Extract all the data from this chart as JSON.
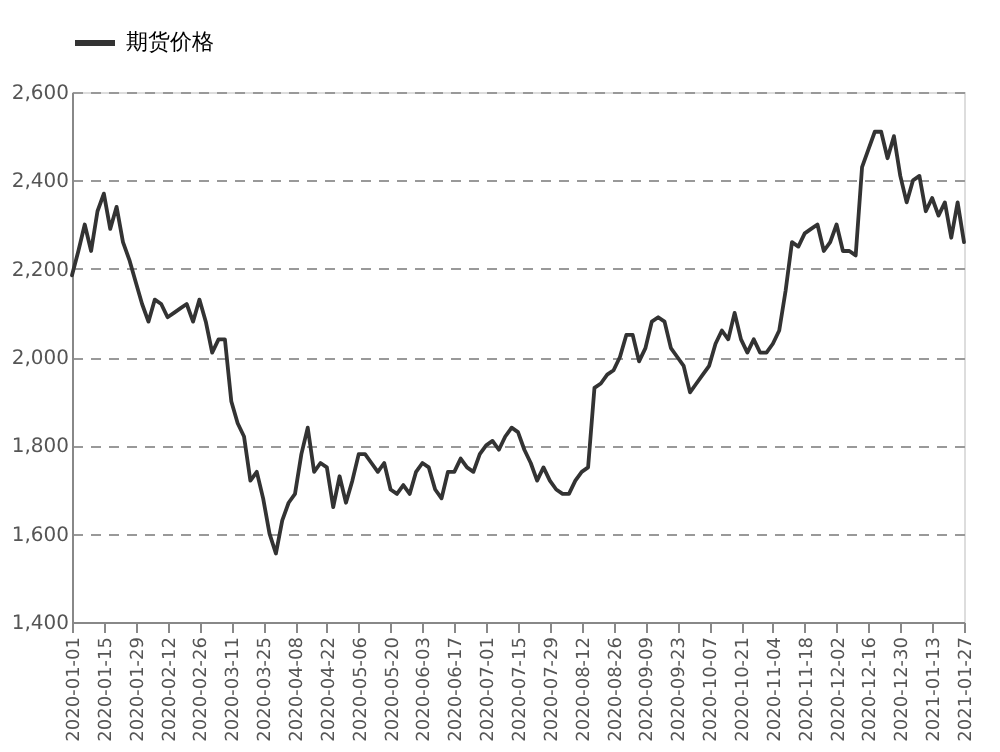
{
  "chart_data": {
    "type": "line",
    "categories": [
      "2020-01-01",
      null,
      null,
      null,
      null,
      "2020-01-15",
      null,
      null,
      null,
      null,
      "2020-01-29",
      null,
      null,
      null,
      null,
      "2020-02-12",
      null,
      null,
      null,
      null,
      "2020-02-26",
      null,
      null,
      null,
      null,
      "2020-03-11",
      null,
      null,
      null,
      null,
      "2020-03-25",
      null,
      null,
      null,
      null,
      "2020-04-08",
      null,
      null,
      null,
      null,
      "2020-04-22",
      null,
      null,
      null,
      null,
      "2020-05-06",
      null,
      null,
      null,
      null,
      "2020-05-20",
      null,
      null,
      null,
      null,
      "2020-06-03",
      null,
      null,
      null,
      null,
      "2020-06-17",
      null,
      null,
      null,
      null,
      "2020-07-01",
      null,
      null,
      null,
      null,
      "2020-07-15",
      null,
      null,
      null,
      null,
      "2020-07-29",
      null,
      null,
      null,
      null,
      "2020-08-12",
      null,
      null,
      null,
      null,
      "2020-08-26",
      null,
      null,
      null,
      null,
      "2020-09-09",
      null,
      null,
      null,
      null,
      "2020-09-23",
      null,
      null,
      null,
      null,
      "2020-10-07",
      null,
      null,
      null,
      null,
      "2020-10-21",
      null,
      null,
      null,
      null,
      "2020-11-04",
      null,
      null,
      null,
      null,
      "2020-11-18",
      null,
      null,
      null,
      null,
      "2020-12-02",
      null,
      null,
      null,
      null,
      "2020-12-16",
      null,
      null,
      null,
      null,
      "2020-12-30",
      null,
      null,
      null,
      null,
      "2021-01-13",
      null,
      null,
      null,
      null,
      "2021-01-27"
    ],
    "series": [
      {
        "name": "期货价格",
        "color": "#333333",
        "values": [
          2185,
          2240,
          2300,
          2240,
          2330,
          2370,
          2290,
          2340,
          2260,
          2220,
          2170,
          2120,
          2080,
          2130,
          2120,
          2090,
          2100,
          2110,
          2120,
          2080,
          2130,
          2080,
          2010,
          2040,
          2040,
          1900,
          1850,
          1820,
          1720,
          1740,
          1680,
          1600,
          1555,
          1630,
          1670,
          1690,
          1780,
          1840,
          1740,
          1760,
          1750,
          1660,
          1730,
          1670,
          1720,
          1780,
          1780,
          1760,
          1740,
          1760,
          1700,
          1690,
          1710,
          1690,
          1740,
          1760,
          1750,
          1700,
          1680,
          1740,
          1740,
          1770,
          1750,
          1740,
          1780,
          1800,
          1810,
          1790,
          1820,
          1840,
          1830,
          1790,
          1760,
          1720,
          1750,
          1720,
          1700,
          1690,
          1690,
          1720,
          1740,
          1750,
          1930,
          1940,
          1960,
          1970,
          2000,
          2050,
          2050,
          1990,
          2020,
          2080,
          2090,
          2080,
          2020,
          2000,
          1980,
          1920,
          1940,
          1960,
          1980,
          2030,
          2060,
          2040,
          2100,
          2040,
          2010,
          2040,
          2010,
          2010,
          2030,
          2060,
          2150,
          2260,
          2250,
          2280,
          2290,
          2300,
          2240,
          2260,
          2300,
          2240,
          2240,
          2230,
          2430,
          2470,
          2510,
          2510,
          2450,
          2500,
          2410,
          2350,
          2400,
          2410,
          2330,
          2360,
          2320,
          2350,
          2270,
          2350,
          2260
        ]
      }
    ],
    "ylim": [
      1400,
      2600
    ],
    "yticks": [
      {
        "value": 1400,
        "label": "1,400"
      },
      {
        "value": 1600,
        "label": "1,600"
      },
      {
        "value": 1800,
        "label": "1,800"
      },
      {
        "value": 2000,
        "label": "2,000"
      },
      {
        "value": 2200,
        "label": "2,200"
      },
      {
        "value": 2400,
        "label": "2,400"
      },
      {
        "value": 2600,
        "label": "2,600"
      }
    ],
    "grid": "y",
    "legend": "top",
    "marker": "none",
    "line_style": "solid"
  }
}
